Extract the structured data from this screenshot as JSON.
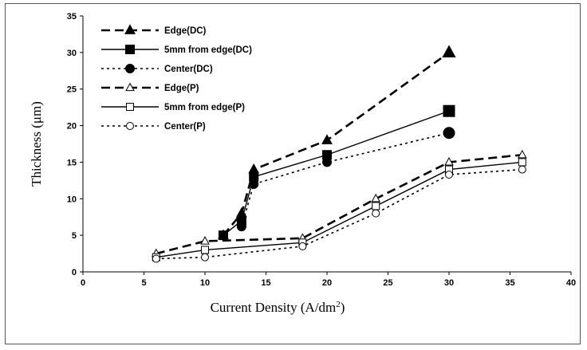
{
  "chart_data": {
    "type": "line",
    "xlabel": "Current Density (A/dm",
    "xlabel_sup": "2",
    "xlabel_close": ")",
    "ylabel": "Thickness (μm)",
    "xlim": [
      0,
      40
    ],
    "ylim": [
      0,
      35
    ],
    "x_ticks": [
      0,
      5,
      10,
      15,
      20,
      25,
      30,
      35,
      40
    ],
    "y_ticks": [
      0,
      5,
      10,
      15,
      20,
      25,
      30,
      35
    ],
    "grid": false,
    "legend_position": "top-left",
    "series": [
      {
        "name": "Edge(DC)",
        "style": "dashed-bold",
        "marker": "triangle-filled",
        "points": [
          [
            11.5,
            5
          ],
          [
            13,
            8
          ],
          [
            14,
            14
          ],
          [
            20,
            18
          ],
          [
            30,
            30
          ]
        ]
      },
      {
        "name": "5mm from edge(DC)",
        "style": "solid",
        "marker": "square-filled",
        "points": [
          [
            11.5,
            5
          ],
          [
            13,
            7
          ],
          [
            14,
            13
          ],
          [
            20,
            16
          ],
          [
            30,
            22
          ]
        ]
      },
      {
        "name": "Center(DC)",
        "style": "dotted",
        "marker": "circle-filled",
        "points": [
          [
            13,
            6.2
          ],
          [
            14,
            12
          ],
          [
            20,
            15
          ],
          [
            30,
            19
          ]
        ]
      },
      {
        "name": "Edge(P)",
        "style": "dashed-bold",
        "marker": "triangle-open",
        "points": [
          [
            6,
            2.5
          ],
          [
            10,
            4.2
          ],
          [
            18,
            4.6
          ],
          [
            24,
            10
          ],
          [
            30,
            15
          ],
          [
            36,
            16
          ]
        ]
      },
      {
        "name": "5mm from edge(P)",
        "style": "solid",
        "marker": "square-open",
        "points": [
          [
            6,
            2
          ],
          [
            10,
            3
          ],
          [
            18,
            4
          ],
          [
            24,
            9
          ],
          [
            30,
            14
          ],
          [
            36,
            15
          ]
        ]
      },
      {
        "name": "Center(P)",
        "style": "dotted",
        "marker": "circle-open",
        "points": [
          [
            6,
            1.8
          ],
          [
            10,
            2
          ],
          [
            18,
            3.5
          ],
          [
            24,
            8
          ],
          [
            30,
            13.3
          ],
          [
            36,
            14
          ]
        ]
      }
    ]
  }
}
